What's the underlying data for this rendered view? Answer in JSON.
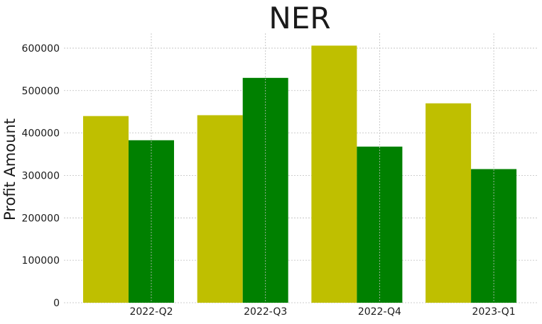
{
  "chart_data": {
    "type": "bar",
    "title": "NER",
    "xlabel": "",
    "ylabel": "Profit Amount",
    "categories": [
      "2022-Q2",
      "2022-Q3",
      "2022-Q4",
      "2023-Q1"
    ],
    "series": [
      {
        "values": [
          440000,
          442000,
          606000,
          470000
        ],
        "color": "#bfbf00"
      },
      {
        "values": [
          383000,
          530000,
          368000,
          315000
        ],
        "color": "#008000"
      }
    ],
    "ylim": [
      0,
      635000
    ],
    "yticks": [
      0,
      100000,
      200000,
      300000,
      400000,
      500000,
      600000
    ],
    "grid": true,
    "legend": "none"
  }
}
